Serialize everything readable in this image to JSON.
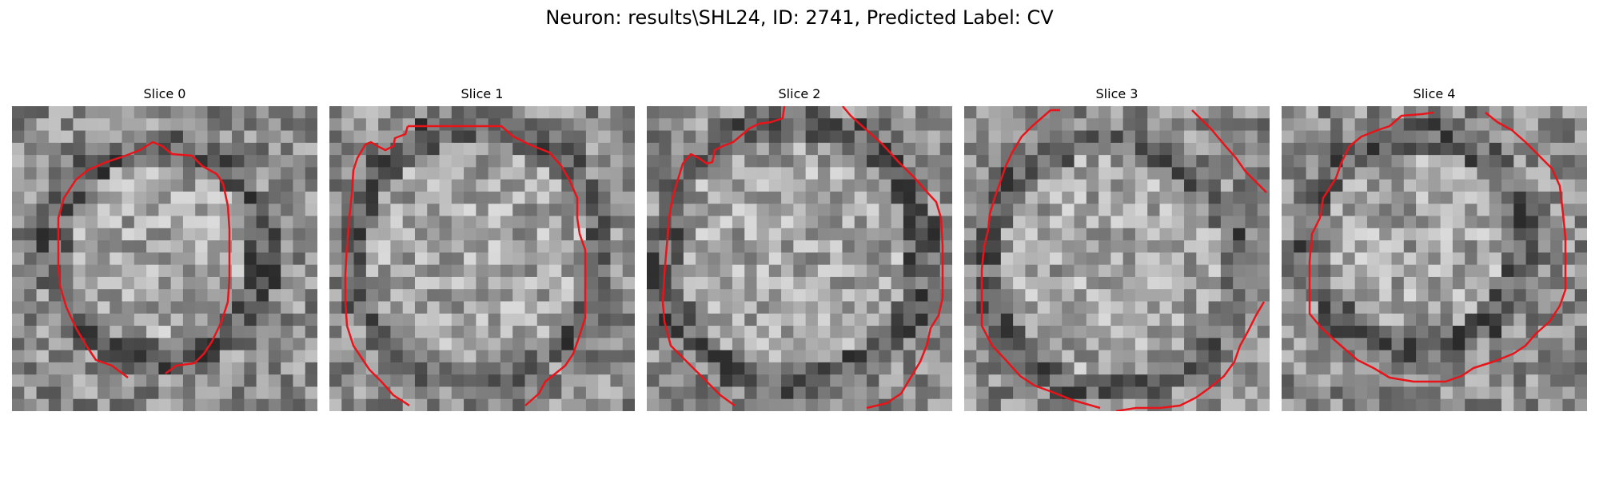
{
  "figure": {
    "title": "Neuron: results\\SHL24, ID: 2741, Predicted Label: CV"
  },
  "panels": [
    {
      "title": "Slice 0"
    },
    {
      "title": "Slice 1"
    },
    {
      "title": "Slice 2"
    },
    {
      "title": "Slice 3"
    },
    {
      "title": "Slice 4"
    }
  ],
  "colors": {
    "contour": "#e8141a",
    "background": "#ffffff"
  }
}
